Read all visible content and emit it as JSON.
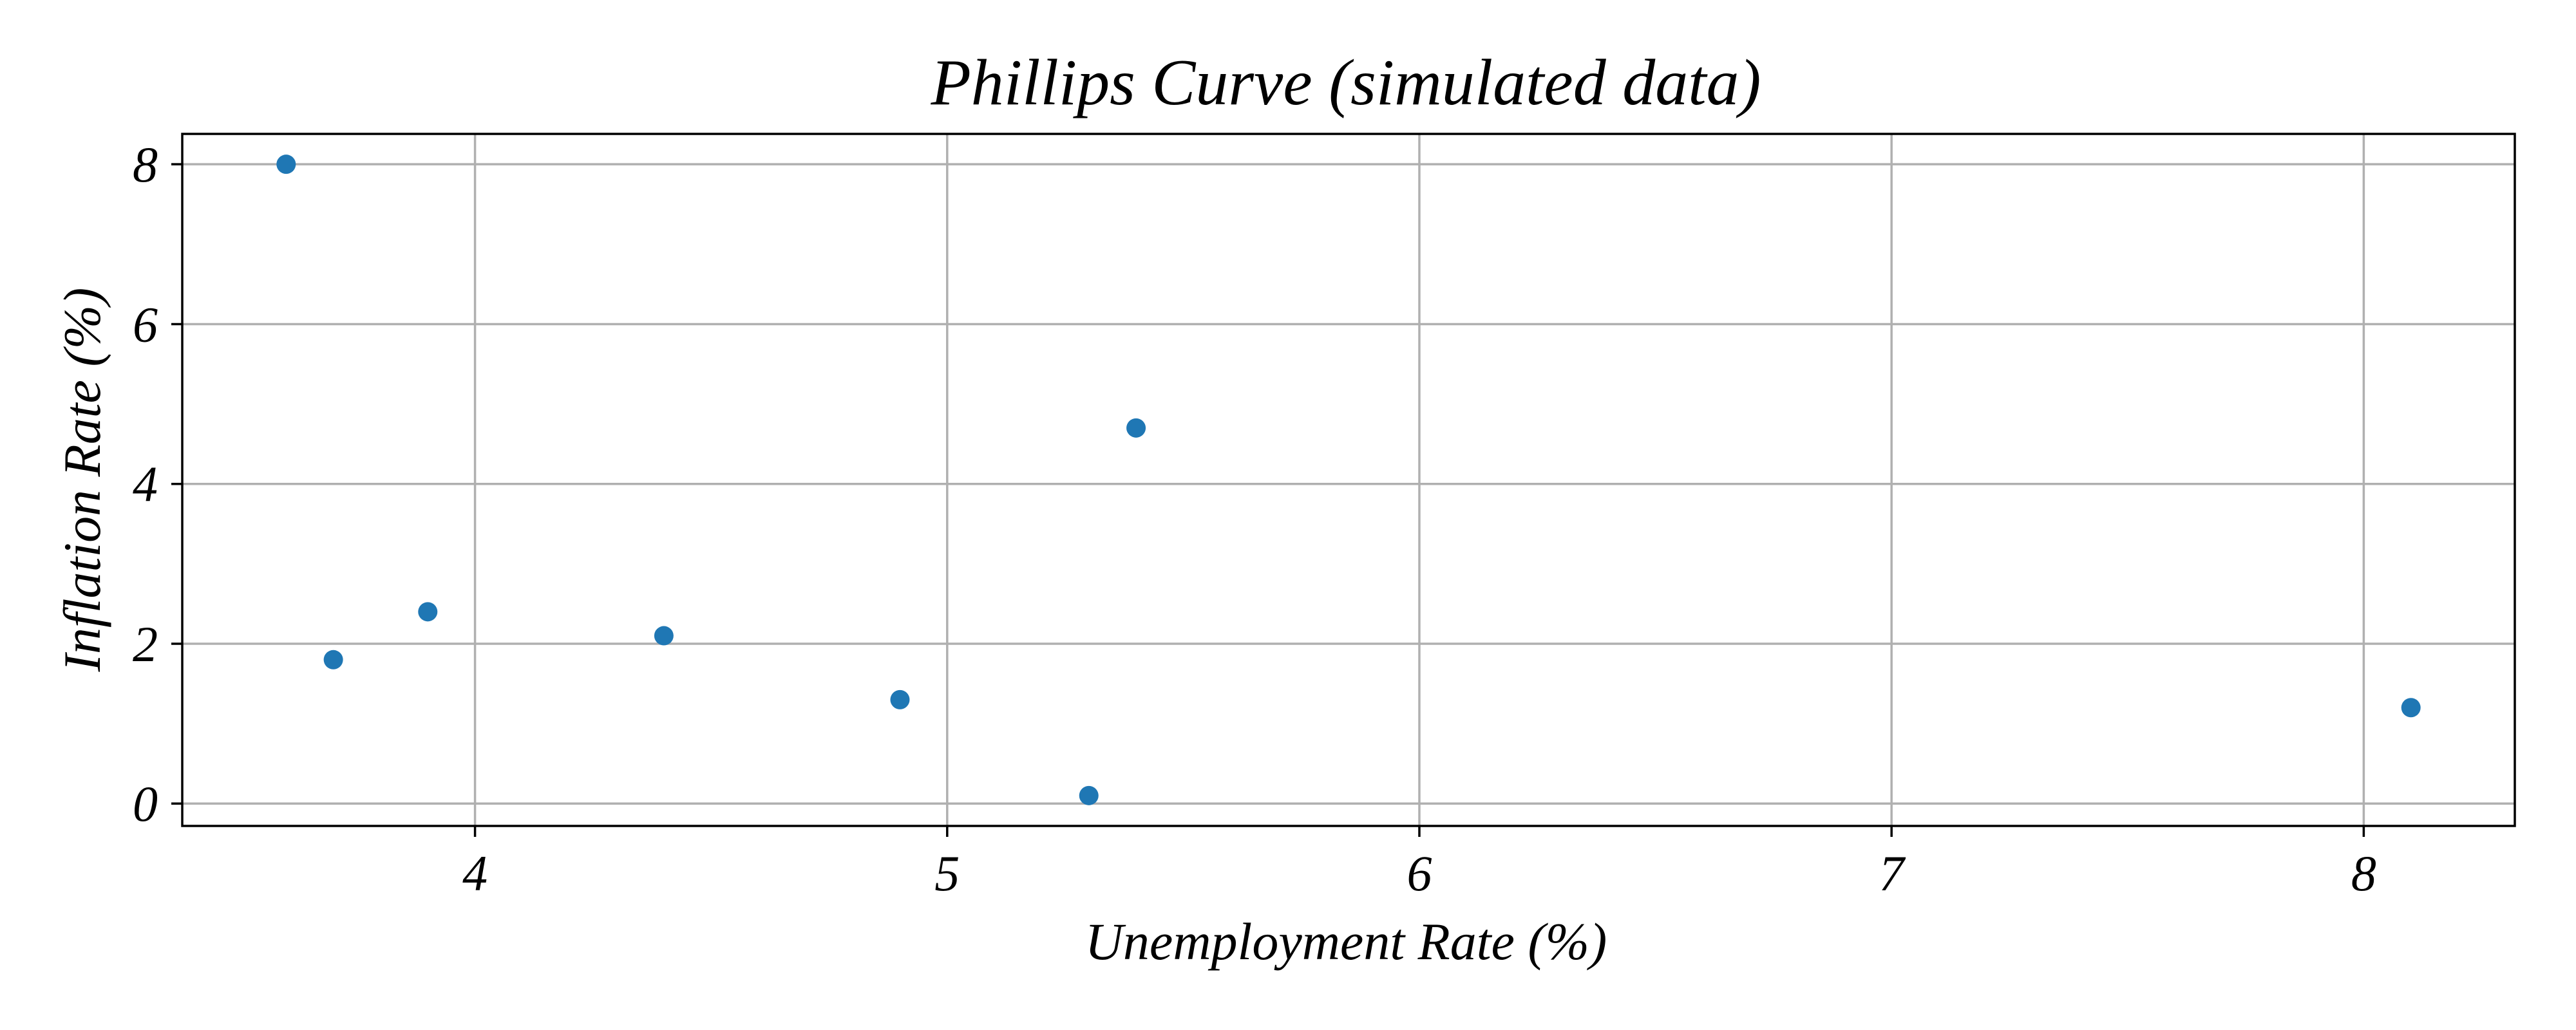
{
  "chart_data": {
    "type": "scatter",
    "title": "Phillips Curve (simulated data)",
    "xlabel": "Unemployment Rate (%)",
    "ylabel": "Inflation Rate (%)",
    "xlim": [
      3.38,
      8.32
    ],
    "ylim": [
      -0.28,
      8.38
    ],
    "xticks": [
      4,
      5,
      6,
      7,
      8
    ],
    "yticks": [
      0,
      2,
      4,
      6,
      8
    ],
    "xtick_labels": [
      "4",
      "5",
      "6",
      "7",
      "8"
    ],
    "ytick_labels": [
      "0",
      "2",
      "4",
      "6",
      "8"
    ],
    "grid": true,
    "legend": null,
    "point_color": "#1f77b4",
    "points": [
      {
        "x": 3.6,
        "y": 8.0
      },
      {
        "x": 3.7,
        "y": 1.8
      },
      {
        "x": 3.9,
        "y": 2.4
      },
      {
        "x": 4.4,
        "y": 2.1
      },
      {
        "x": 4.9,
        "y": 1.3
      },
      {
        "x": 5.3,
        "y": 0.1
      },
      {
        "x": 5.4,
        "y": 4.7
      },
      {
        "x": 8.1,
        "y": 1.2
      }
    ]
  }
}
